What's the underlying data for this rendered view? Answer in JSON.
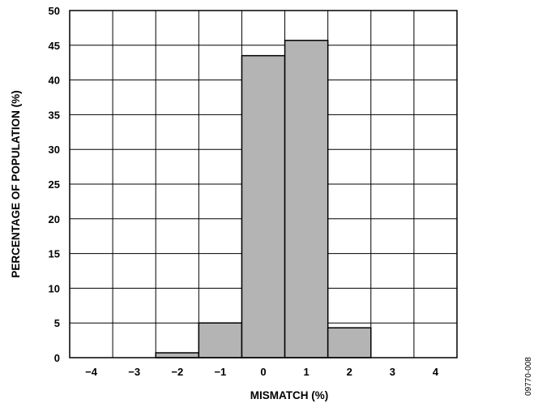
{
  "chart_data": {
    "type": "bar",
    "categories": [
      "−4",
      "−3",
      "−2",
      "−1",
      "0",
      "1",
      "2",
      "3",
      "4"
    ],
    "values": [
      0,
      0,
      0.7,
      5.0,
      43.5,
      45.7,
      4.3,
      0,
      0
    ],
    "xlabel": "MISMATCH (%)",
    "ylabel": "PERCENTAGE OF POPULATION (%)",
    "ylim": [
      0,
      50
    ],
    "yticks": [
      0,
      5,
      10,
      15,
      20,
      25,
      30,
      35,
      40,
      45,
      50
    ],
    "grid": true,
    "bar_color": "#b4b4b4",
    "figure_id": "09770-008"
  }
}
